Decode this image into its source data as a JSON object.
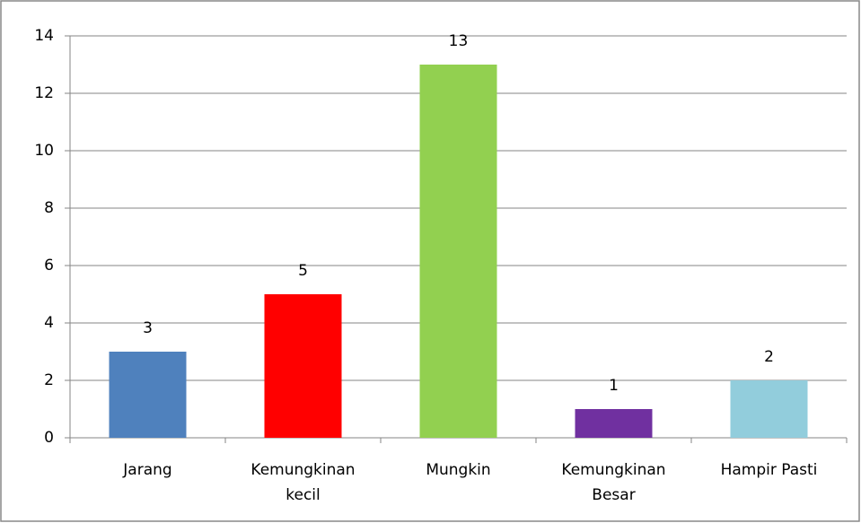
{
  "chart_data": {
    "type": "bar",
    "categories": [
      "Jarang",
      "Kemungkinan kecil",
      "Mungkin",
      "Kemungkinan Besar",
      "Hampir Pasti"
    ],
    "values": [
      3,
      5,
      13,
      1,
      2
    ],
    "colors": [
      "#4f81bd",
      "#ff0000",
      "#92d050",
      "#7030a0",
      "#92cddc"
    ],
    "ylim": [
      0,
      14
    ],
    "yticks": [
      0,
      2,
      4,
      6,
      8,
      10,
      12,
      14
    ],
    "grid": true
  }
}
